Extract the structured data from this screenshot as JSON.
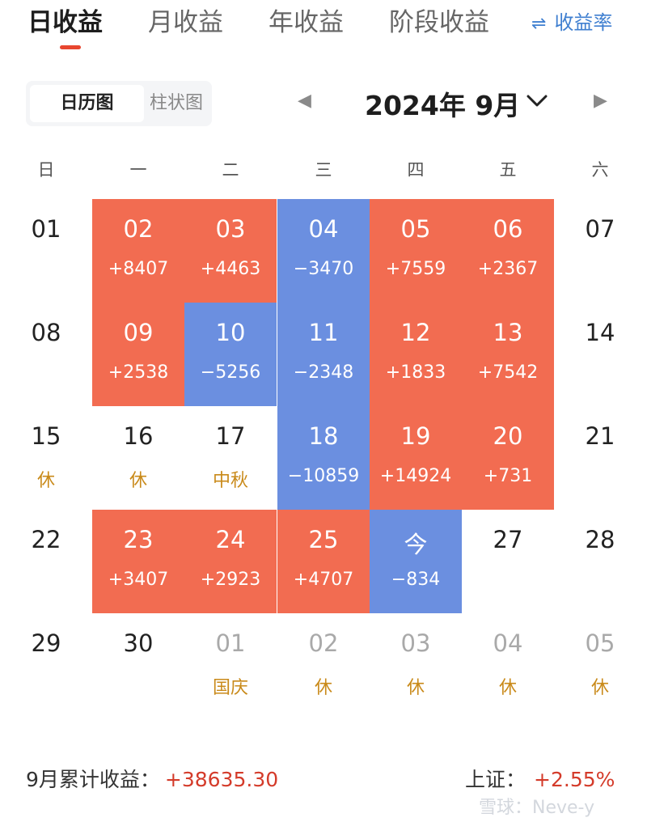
{
  "tabs": [
    {
      "label": "日收益",
      "active": true
    },
    {
      "label": "月收益",
      "active": false
    },
    {
      "label": "年收益",
      "active": false
    },
    {
      "label": "阶段收益",
      "active": false
    }
  ],
  "rate_toggle": {
    "label": "收益率",
    "icon": "swap-arrows-icon"
  },
  "view_switch": {
    "calendar_label": "日历图",
    "bar_label": "柱状图",
    "selected": "日历图"
  },
  "month_nav": {
    "title": "2024年 9月",
    "prev_icon": "triangle-left-icon",
    "next_icon": "triangle-right-icon",
    "dropdown_icon": "chevron-down-icon"
  },
  "weekdays": [
    "日",
    "一",
    "二",
    "三",
    "四",
    "五",
    "六"
  ],
  "colors": {
    "gain": "#f26c51",
    "loss": "#6b8fe0",
    "accent_red": "#d43b2a",
    "holiday": "#c98a1a",
    "link_blue": "#3f7fd0"
  },
  "weeks": [
    [
      {
        "day": "01",
        "sub": "",
        "type": "none"
      },
      {
        "day": "02",
        "sub": "+8407",
        "type": "gain"
      },
      {
        "day": "03",
        "sub": "+4463",
        "type": "gain"
      },
      {
        "day": "04",
        "sub": "−3470",
        "type": "loss"
      },
      {
        "day": "05",
        "sub": "+7559",
        "type": "gain"
      },
      {
        "day": "06",
        "sub": "+2367",
        "type": "gain"
      },
      {
        "day": "07",
        "sub": "",
        "type": "none"
      }
    ],
    [
      {
        "day": "08",
        "sub": "",
        "type": "none"
      },
      {
        "day": "09",
        "sub": "+2538",
        "type": "gain"
      },
      {
        "day": "10",
        "sub": "−5256",
        "type": "loss"
      },
      {
        "day": "11",
        "sub": "−2348",
        "type": "loss"
      },
      {
        "day": "12",
        "sub": "+1833",
        "type": "gain"
      },
      {
        "day": "13",
        "sub": "+7542",
        "type": "gain"
      },
      {
        "day": "14",
        "sub": "",
        "type": "none"
      }
    ],
    [
      {
        "day": "15",
        "sub": "休",
        "type": "none"
      },
      {
        "day": "16",
        "sub": "休",
        "type": "none"
      },
      {
        "day": "17",
        "sub": "中秋",
        "type": "none"
      },
      {
        "day": "18",
        "sub": "−10859",
        "type": "loss"
      },
      {
        "day": "19",
        "sub": "+14924",
        "type": "gain"
      },
      {
        "day": "20",
        "sub": "+731",
        "type": "gain"
      },
      {
        "day": "21",
        "sub": "",
        "type": "none"
      }
    ],
    [
      {
        "day": "22",
        "sub": "",
        "type": "none"
      },
      {
        "day": "23",
        "sub": "+3407",
        "type": "gain"
      },
      {
        "day": "24",
        "sub": "+2923",
        "type": "gain"
      },
      {
        "day": "25",
        "sub": "+4707",
        "type": "gain"
      },
      {
        "day": "今",
        "sub": "−834",
        "type": "loss"
      },
      {
        "day": "27",
        "sub": "",
        "type": "none"
      },
      {
        "day": "28",
        "sub": "",
        "type": "none"
      }
    ],
    [
      {
        "day": "29",
        "sub": "",
        "type": "none"
      },
      {
        "day": "30",
        "sub": "",
        "type": "none"
      },
      {
        "day": "01",
        "sub": "国庆",
        "type": "muted"
      },
      {
        "day": "02",
        "sub": "休",
        "type": "muted"
      },
      {
        "day": "03",
        "sub": "休",
        "type": "muted"
      },
      {
        "day": "04",
        "sub": "休",
        "type": "muted"
      },
      {
        "day": "05",
        "sub": "休",
        "type": "muted"
      }
    ]
  ],
  "summary": {
    "label": "9月累计收益：",
    "amount": "+38635.30"
  },
  "index": {
    "label": "上证：",
    "value": "+2.55%"
  },
  "watermark": "雪球：Neve-y"
}
